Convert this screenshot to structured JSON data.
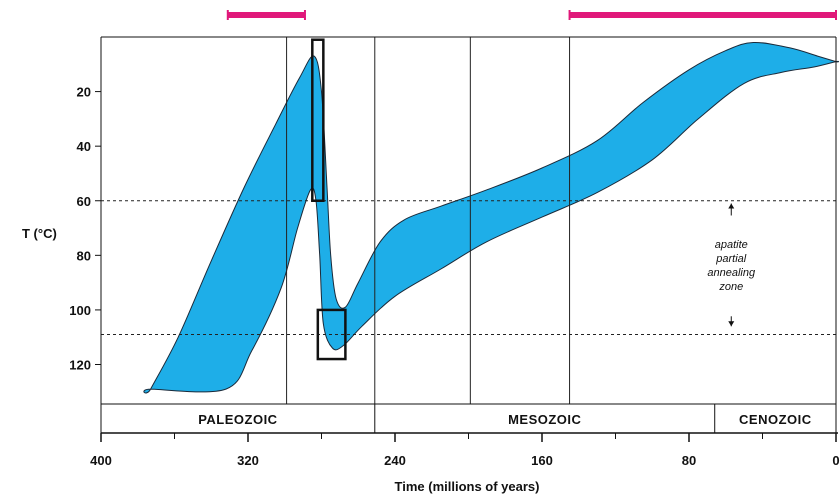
{
  "chart_data": {
    "type": "area",
    "title": "",
    "xlabel": "Time (millions of years)",
    "ylabel": "T (°C)",
    "xlim": [
      400,
      0
    ],
    "ylim": [
      0,
      130
    ],
    "x_ticks": [
      400,
      320,
      240,
      160,
      80,
      0
    ],
    "x_minor_ticks": [
      360,
      280,
      200,
      120,
      40
    ],
    "y_ticks": [
      20,
      40,
      60,
      80,
      100,
      120
    ],
    "grid": false,
    "series": [
      {
        "fill_color": "#1eaee8",
        "upper": [
          {
            "x": 373,
            "y": 129
          },
          {
            "x": 358,
            "y": 110
          },
          {
            "x": 340,
            "y": 82
          },
          {
            "x": 322,
            "y": 55
          },
          {
            "x": 305,
            "y": 32
          },
          {
            "x": 292,
            "y": 15
          },
          {
            "x": 284,
            "y": 7
          },
          {
            "x": 280,
            "y": 20
          },
          {
            "x": 277,
            "y": 55
          },
          {
            "x": 275,
            "y": 80
          },
          {
            "x": 272,
            "y": 96
          },
          {
            "x": 267,
            "y": 99
          },
          {
            "x": 260,
            "y": 90
          },
          {
            "x": 248,
            "y": 75
          },
          {
            "x": 235,
            "y": 67
          },
          {
            "x": 215,
            "y": 62
          },
          {
            "x": 190,
            "y": 56
          },
          {
            "x": 160,
            "y": 48
          },
          {
            "x": 130,
            "y": 38
          },
          {
            "x": 105,
            "y": 24
          },
          {
            "x": 80,
            "y": 12
          },
          {
            "x": 60,
            "y": 5
          },
          {
            "x": 45,
            "y": 2
          },
          {
            "x": 25,
            "y": 4
          },
          {
            "x": 10,
            "y": 7
          },
          {
            "x": 0,
            "y": 9
          }
        ],
        "lower": [
          {
            "x": 0,
            "y": 9
          },
          {
            "x": 12,
            "y": 11
          },
          {
            "x": 30,
            "y": 13
          },
          {
            "x": 50,
            "y": 17
          },
          {
            "x": 75,
            "y": 30
          },
          {
            "x": 100,
            "y": 45
          },
          {
            "x": 130,
            "y": 57
          },
          {
            "x": 160,
            "y": 66
          },
          {
            "x": 190,
            "y": 75
          },
          {
            "x": 215,
            "y": 85
          },
          {
            "x": 240,
            "y": 95
          },
          {
            "x": 258,
            "y": 106
          },
          {
            "x": 268,
            "y": 113
          },
          {
            "x": 274,
            "y": 114
          },
          {
            "x": 279,
            "y": 105
          },
          {
            "x": 281,
            "y": 80
          },
          {
            "x": 283,
            "y": 60
          },
          {
            "x": 286,
            "y": 56
          },
          {
            "x": 293,
            "y": 70
          },
          {
            "x": 302,
            "y": 92
          },
          {
            "x": 318,
            "y": 115
          },
          {
            "x": 332,
            "y": 129
          },
          {
            "x": 373,
            "y": 129
          }
        ]
      }
    ],
    "boxes": [
      {
        "x_from": 285,
        "x_to": 279,
        "y_from": 1,
        "y_to": 60
      },
      {
        "x_from": 282,
        "x_to": 267,
        "y_from": 100,
        "y_to": 118
      }
    ],
    "dashed_lines": [
      60,
      109
    ],
    "vertical_lines": [
      299,
      251,
      199,
      145
    ],
    "pink_bars": [
      {
        "x_from": 331,
        "x_to": 289
      },
      {
        "x_from": 145,
        "x_to": 0
      }
    ],
    "pink_color": "#e0187a",
    "annotation": {
      "lines": [
        "apatite",
        "partial",
        "annealing",
        "zone"
      ],
      "x": 57,
      "y_arrow_top": 61,
      "y_arrow_bottom": 106
    },
    "eras": [
      {
        "label": "PALEOZOIC",
        "x_from": 400,
        "x_to": 251
      },
      {
        "label": "MESOZOIC",
        "x_from": 251,
        "x_to": 66
      },
      {
        "label": "CENOZOIC",
        "x_from": 66,
        "x_to": 0
      }
    ]
  }
}
